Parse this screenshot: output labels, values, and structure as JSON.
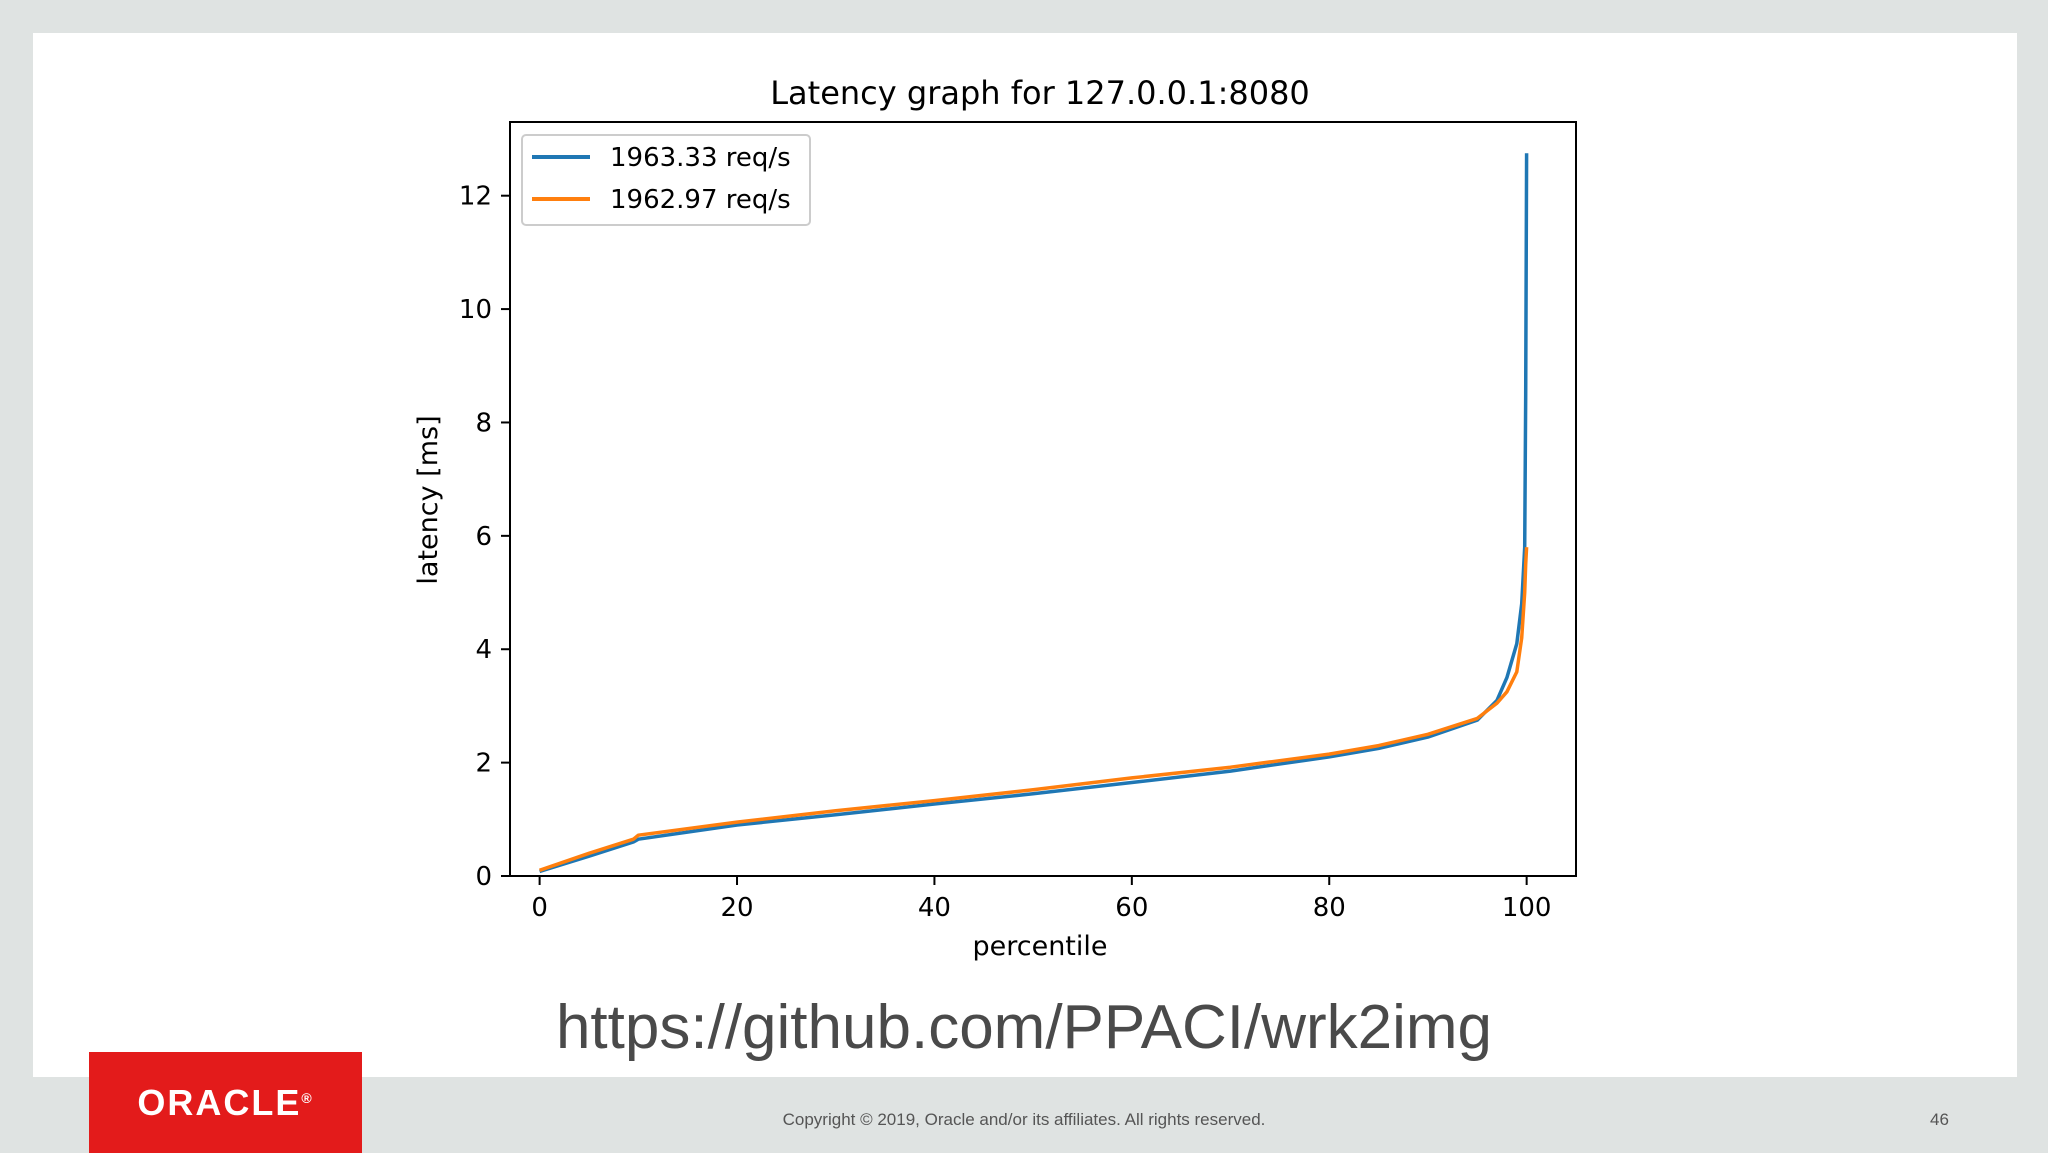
{
  "url_text": "https://github.com/PPACI/wrk2img",
  "footer": {
    "logo_text": "ORACLE",
    "logo_registered": "®",
    "copyright": "Copyright © 2019, Oracle and/or its affiliates. All rights reserved.",
    "page_number": "46"
  },
  "colors": {
    "background": "#dfe3e2",
    "slide": "#ffffff",
    "oracle_red": "#e31b1b"
  },
  "chart_data": {
    "type": "line",
    "title": "Latency graph for 127.0.0.1:8080",
    "xlabel": "percentile",
    "ylabel": "latency [ms]",
    "xlim": [
      -3,
      105
    ],
    "ylim": [
      0,
      13.3
    ],
    "xticks": [
      0,
      20,
      40,
      60,
      80,
      100
    ],
    "yticks": [
      0,
      2,
      4,
      6,
      8,
      10,
      12
    ],
    "grid": false,
    "legend": "upper left",
    "series": [
      {
        "name": "1963.33 req/s",
        "color": "#1f77b4",
        "x": [
          0,
          5,
          9.5,
          10,
          20,
          30,
          40,
          50,
          60,
          70,
          80,
          85,
          90,
          95,
          97,
          98,
          99,
          99.5,
          99.8,
          99.9,
          100
        ],
        "y": [
          0.08,
          0.35,
          0.6,
          0.65,
          0.9,
          1.08,
          1.27,
          1.45,
          1.65,
          1.85,
          2.1,
          2.25,
          2.45,
          2.75,
          3.1,
          3.5,
          4.1,
          4.8,
          5.8,
          8.5,
          12.75
        ]
      },
      {
        "name": "1962.97 req/s",
        "color": "#ff7f0e",
        "x": [
          0,
          5,
          9.5,
          10,
          20,
          30,
          40,
          50,
          60,
          70,
          80,
          85,
          90,
          95,
          97,
          98,
          99,
          99.5,
          99.8,
          99.9,
          100
        ],
        "y": [
          0.1,
          0.4,
          0.65,
          0.72,
          0.95,
          1.15,
          1.33,
          1.52,
          1.73,
          1.92,
          2.15,
          2.3,
          2.5,
          2.78,
          3.05,
          3.25,
          3.6,
          4.2,
          5.0,
          5.5,
          5.8
        ]
      }
    ]
  }
}
